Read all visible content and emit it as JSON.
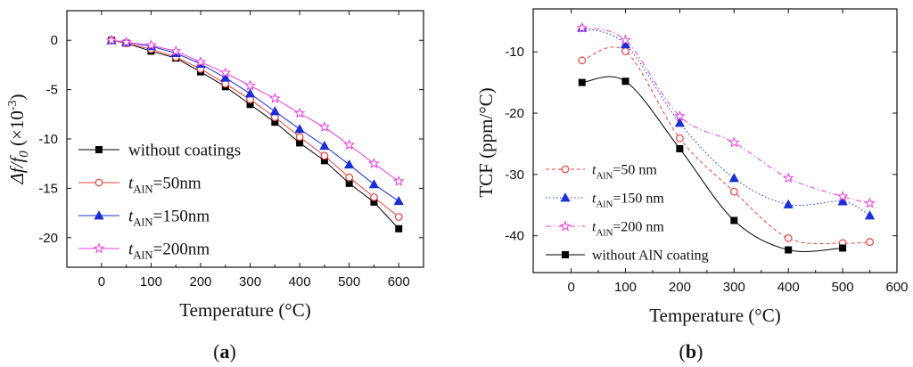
{
  "chart_data": [
    {
      "type": "line",
      "panel_label": {
        "open": "(",
        "letter": "a",
        "close": ")"
      },
      "xlabel": "Temperature (°C)",
      "ylabel": {
        "prefix": "Δf/f",
        "sub": "0",
        "unit_open": " (×10",
        "unit_sup": "-3",
        "unit_close": ")"
      },
      "xlim": [
        -70,
        650
      ],
      "ylim": [
        -23,
        3
      ],
      "xticks": [
        0,
        100,
        200,
        300,
        400,
        500,
        600
      ],
      "yticks": [
        0,
        -5,
        -10,
        -15,
        -20
      ],
      "grid": false,
      "legend_position": "bottom-left",
      "series": [
        {
          "name": "without coatings",
          "name_parts": {
            "pre": "without coatings",
            "sub": "",
            "post": ""
          },
          "color": "#000000",
          "marker": "square",
          "x": [
            20,
            50,
            100,
            150,
            200,
            250,
            300,
            350,
            400,
            450,
            500,
            550,
            600
          ],
          "y": [
            0,
            -0.3,
            -1.1,
            -1.8,
            -3.2,
            -4.7,
            -6.5,
            -8.3,
            -10.4,
            -12.2,
            -14.5,
            -16.4,
            -19.1
          ]
        },
        {
          "name": "tAlN=50nm",
          "name_parts": {
            "pre": "t",
            "sub": "AlN",
            "post": "=50nm"
          },
          "color": "#e8413c",
          "marker": "circle",
          "x": [
            20,
            50,
            100,
            150,
            200,
            250,
            300,
            350,
            400,
            450,
            500,
            550,
            600
          ],
          "y": [
            0,
            -0.3,
            -0.9,
            -1.7,
            -2.9,
            -4.4,
            -6.0,
            -7.8,
            -9.8,
            -11.7,
            -13.9,
            -15.9,
            -17.9
          ]
        },
        {
          "name": "tAlN=150nm",
          "name_parts": {
            "pre": "t",
            "sub": "AlN",
            "post": "=150nm"
          },
          "color": "#1a2fd6",
          "marker": "triangle",
          "x": [
            20,
            50,
            100,
            150,
            200,
            250,
            300,
            350,
            400,
            450,
            500,
            550,
            600
          ],
          "y": [
            0,
            -0.2,
            -0.6,
            -1.3,
            -2.4,
            -3.8,
            -5.4,
            -7.2,
            -9.0,
            -10.7,
            -12.6,
            -14.6,
            -16.3
          ]
        },
        {
          "name": "tAlN=200nm",
          "name_parts": {
            "pre": "t",
            "sub": "AlN",
            "post": "=200nm"
          },
          "color": "#e83fe0",
          "marker": "star",
          "x": [
            20,
            50,
            100,
            150,
            200,
            250,
            300,
            350,
            400,
            450,
            500,
            550,
            600
          ],
          "y": [
            0,
            -0.2,
            -0.5,
            -1.1,
            -2.2,
            -3.3,
            -4.6,
            -5.9,
            -7.4,
            -8.8,
            -10.6,
            -12.5,
            -14.3
          ]
        }
      ]
    },
    {
      "type": "line",
      "panel_label": {
        "open": "(",
        "letter": "b",
        "close": ")"
      },
      "xlabel": "Temperature (°C)",
      "ylabel": {
        "prefix": "TCF (ppm/°C)",
        "sub": "",
        "unit_open": "",
        "unit_sup": "",
        "unit_close": ""
      },
      "xlim": [
        -70,
        600
      ],
      "ylim": [
        -46,
        -3
      ],
      "xticks": [
        0,
        100,
        200,
        300,
        400,
        500,
        600
      ],
      "yticks": [
        -10,
        -20,
        -30,
        -40
      ],
      "grid": false,
      "legend_position": "bottom-left",
      "series": [
        {
          "name": "tAlN=50 nm",
          "name_parts": {
            "pre": "t",
            "sub": "AlN",
            "post": "=50 nm"
          },
          "color": "#e8413c",
          "marker": "circle",
          "line": "dashed",
          "x": [
            20,
            100,
            200,
            300,
            400,
            500,
            550
          ],
          "y": [
            -11.4,
            -9.9,
            -24.1,
            -32.8,
            -40.4,
            -41.2,
            -41.0
          ]
        },
        {
          "name": "tAlN=150 nm",
          "name_parts": {
            "pre": "t",
            "sub": "AlN",
            "post": "=150 nm"
          },
          "color": "#1a2fd6",
          "marker": "triangle",
          "line": "dotted",
          "x": [
            20,
            100,
            200,
            300,
            400,
            500,
            550
          ],
          "y": [
            -6.1,
            -8.8,
            -21.6,
            -30.6,
            -34.9,
            -34.4,
            -36.7
          ]
        },
        {
          "name": "tAlN=200 nm",
          "name_parts": {
            "pre": "t",
            "sub": "AlN",
            "post": "=200 nm"
          },
          "color": "#e83fe0",
          "marker": "star",
          "line": "dashdot",
          "x": [
            20,
            100,
            200,
            300,
            400,
            500,
            550
          ],
          "y": [
            -6.1,
            -8.1,
            -20.5,
            -24.8,
            -30.6,
            -33.6,
            -34.7
          ]
        },
        {
          "name": "without AlN coating",
          "name_parts": {
            "pre": "without AlN coating",
            "sub": "",
            "post": ""
          },
          "color": "#000000",
          "marker": "square",
          "line": "solid",
          "x": [
            20,
            100,
            200,
            300,
            400,
            500
          ],
          "y": [
            -15.0,
            -14.8,
            -25.8,
            -37.5,
            -42.3,
            -42.0
          ]
        }
      ]
    }
  ]
}
